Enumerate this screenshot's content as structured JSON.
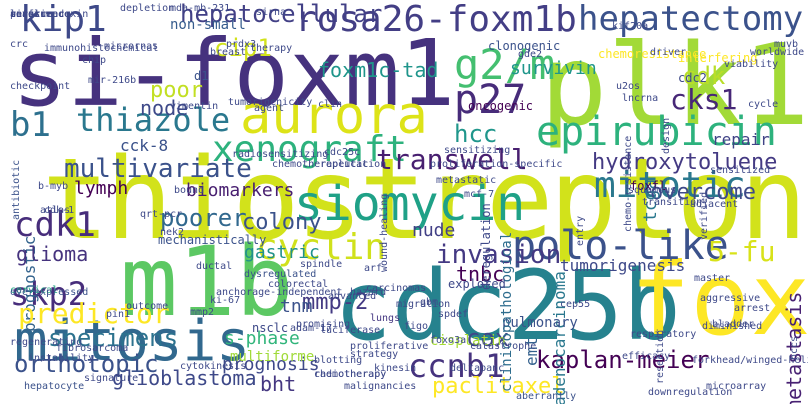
{
  "words": [
    {
      "t": "thiostrepton",
      "c": "#d2e21b",
      "big": true
    },
    {
      "t": "si-foxm1",
      "c": "#46327e"
    },
    {
      "t": "plk1",
      "c": "#a2da37"
    },
    {
      "t": "cdc25b",
      "c": "#26828e"
    },
    {
      "t": "m1b",
      "c": "#5cc863"
    },
    {
      "t": "fox",
      "c": "#fde725"
    },
    {
      "t": "mitosis",
      "c": "#31688e"
    },
    {
      "t": "rosa26-foxm1b",
      "c": "#433e85"
    },
    {
      "t": "hepatectomy",
      "c": "#3b528b"
    },
    {
      "t": "siomycin",
      "c": "#1fa187"
    },
    {
      "t": "aurora",
      "c": "#dde318"
    },
    {
      "t": "epirubicin",
      "c": "#2db27d"
    },
    {
      "t": "polo-like",
      "c": "#3b528b"
    },
    {
      "t": "xenograft",
      "c": "#2db27d"
    },
    {
      "t": "kip1",
      "c": "#3e4989"
    },
    {
      "t": "hepatocellular",
      "c": "#424086"
    },
    {
      "t": "g2/m",
      "c": "#44bf70"
    },
    {
      "t": "p27",
      "c": "#472c7a"
    },
    {
      "t": "thiazole",
      "c": "#2a788e"
    },
    {
      "t": "transwell",
      "c": "#481f70"
    },
    {
      "t": "cyclin",
      "c": "#d0e11c"
    },
    {
      "t": "mitotic",
      "c": "#2a788e"
    },
    {
      "t": "cdk1",
      "c": "#472d7b"
    },
    {
      "t": "skp2",
      "c": "#472d7b"
    },
    {
      "t": "ccnb1",
      "c": "#46337e"
    },
    {
      "t": "b1",
      "c": "#2d708e"
    },
    {
      "t": "hcc",
      "c": "#1f968b"
    },
    {
      "t": "hydroxytoluene",
      "c": "#443a83"
    },
    {
      "t": "cks1",
      "c": "#472777"
    },
    {
      "t": "cdk",
      "c": "#bade28"
    },
    {
      "t": "chemoresistance",
      "c": "#fde725"
    },
    {
      "t": "foxm1c-tad",
      "c": "#1f958b"
    },
    {
      "t": "survivin",
      "c": "#1f968b"
    },
    {
      "t": "cip1",
      "c": "#d2e21b"
    },
    {
      "t": "non-small",
      "c": "#365c8d"
    },
    {
      "t": "poor",
      "c": "#c2df23"
    },
    {
      "t": "node",
      "c": "#3e4989"
    },
    {
      "t": "cck-8",
      "c": "#3b528b"
    },
    {
      "t": "multivariate",
      "c": "#3b528b"
    },
    {
      "t": "lymph",
      "c": "#440154"
    },
    {
      "t": "biomarkers",
      "c": "#481f70"
    },
    {
      "t": "overcome",
      "c": "#3e4a89"
    },
    {
      "t": "prognostic",
      "c": "#33638d"
    },
    {
      "t": "poorer",
      "c": "#31688e"
    },
    {
      "t": "colony",
      "c": "#3b528b"
    },
    {
      "t": "glioma",
      "c": "#46337e"
    },
    {
      "t": "gastric",
      "c": "#21918c"
    },
    {
      "t": "nude",
      "c": "#424086"
    },
    {
      "t": "invasion",
      "c": "#443983"
    },
    {
      "t": "tnbc",
      "c": "#440154"
    },
    {
      "t": "5-fu",
      "c": "#d8e219"
    },
    {
      "t": "tumorigenesis",
      "c": "#3e4989"
    },
    {
      "t": "emt",
      "c": "#34618d"
    },
    {
      "t": "metastasis",
      "c": "#482173"
    },
    {
      "t": "predictor",
      "c": "#fde725"
    },
    {
      "t": "mmp-2",
      "c": "#443a83"
    },
    {
      "t": "specimens",
      "c": "#2c728e"
    },
    {
      "t": "tnm",
      "c": "#3b528b"
    },
    {
      "t": "s-phase",
      "c": "#31b57b"
    },
    {
      "t": "cox",
      "c": "#3f4788"
    },
    {
      "t": "kaplan-meier",
      "c": "#440154"
    },
    {
      "t": "paclitaxel",
      "c": "#fde725"
    },
    {
      "t": "bht",
      "c": "#453781"
    },
    {
      "t": "prognosis",
      "c": "#3e4989"
    },
    {
      "t": "orthotopic",
      "c": "#3b528b"
    },
    {
      "t": "glioblastoma",
      "c": "#3e4989"
    },
    {
      "t": "adenocarcinoma",
      "c": "#2a788e"
    },
    {
      "t": "repair",
      "c": "#414487"
    },
    {
      "t": "tcga",
      "c": "#2a788e"
    },
    {
      "t": "cisplatin",
      "c": "#a5db36"
    },
    {
      "t": "pulmonary",
      "c": "#3b528b"
    },
    {
      "t": "multiforme",
      "c": "#a0da39"
    },
    {
      "t": "nsclc",
      "c": "#3e4989"
    },
    {
      "t": "lungs",
      "c": "#453781"
    },
    {
      "t": "clinicopathological",
      "c": "#2e6d8e"
    },
    {
      "t": "deregulation",
      "c": "#3e4989"
    },
    {
      "t": "foxfl",
      "c": "#440154"
    },
    {
      "t": "entry",
      "c": "#3e4989"
    },
    {
      "t": "oncogenic",
      "c": "#440154"
    },
    {
      "t": "clonogenic",
      "c": "#3b528b"
    },
    {
      "t": "interfering",
      "c": "#fde725"
    },
    {
      "t": "cdc2",
      "c": "#3e4989"
    },
    {
      "t": "d1",
      "c": "#3b528b"
    },
    {
      "t": "cervical",
      "c": "#22a884"
    },
    {
      "t": "outcome",
      "c": "#3e4989"
    },
    {
      "t": "mechanistically",
      "c": "#3b528b"
    },
    {
      "t": "dysregulated",
      "c": "#3b528b"
    },
    {
      "t": "promising",
      "c": "#3e4989"
    },
    {
      "t": "arf",
      "c": "#3e4989"
    },
    {
      "t": "explored",
      "c": "#3e4989"
    },
    {
      "t": "aggressive",
      "c": "#3e4989"
    },
    {
      "t": "master",
      "c": "#3e4989"
    },
    {
      "t": "overexpressed",
      "c": "#3b528b"
    },
    {
      "t": "atlas",
      "c": "#3e4989"
    },
    {
      "t": "antibiotic",
      "c": "#3b528b"
    },
    {
      "t": "regenerating",
      "c": "#3e4989"
    },
    {
      "t": "hepatocyte",
      "c": "#3b528b"
    },
    {
      "t": "signature",
      "c": "#3e4989"
    },
    {
      "t": "cytokinesis",
      "c": "#3e4989"
    },
    {
      "t": "blotting",
      "c": "#3e4989"
    },
    {
      "t": "radiotherapy",
      "c": "#3e4989"
    },
    {
      "t": "malignancies",
      "c": "#3e4989"
    },
    {
      "t": "aberrantly",
      "c": "#3b528b"
    },
    {
      "t": "downregulation",
      "c": "#3e4989"
    },
    {
      "t": "microarray",
      "c": "#3e4989"
    },
    {
      "t": "forkhead/winged-helix",
      "c": "#3e4989"
    },
    {
      "t": "efficacy",
      "c": "#3e4989"
    },
    {
      "t": "catastrophe",
      "c": "#3e4989"
    },
    {
      "t": "kinesin",
      "c": "#3e4989"
    },
    {
      "t": "strategy",
      "c": "#3e4989"
    },
    {
      "t": "deltapanc",
      "c": "#3e4989"
    },
    {
      "t": "spdef",
      "c": "#3e4989"
    },
    {
      "t": "hazard",
      "c": "#3e4989"
    },
    {
      "t": "gbm",
      "c": "#3e4989"
    },
    {
      "t": "migration",
      "c": "#3e4989"
    },
    {
      "t": "carcinomas",
      "c": "#3e4989"
    },
    {
      "t": "advanced",
      "c": "#3e4989"
    },
    {
      "t": "colorectal",
      "c": "#3e4989"
    },
    {
      "t": "ductal",
      "c": "#3e4989"
    },
    {
      "t": "nek2",
      "c": "#3e4989"
    },
    {
      "t": "qrt-pcr",
      "c": "#3e4989"
    },
    {
      "t": "b-myb",
      "c": "#3e4989"
    },
    {
      "t": "bound",
      "c": "#3e4989"
    },
    {
      "t": "metastatic",
      "c": "#3e4989"
    },
    {
      "t": "mcf-7",
      "c": "#3e4989"
    },
    {
      "t": "squamous",
      "c": "#3e4989"
    },
    {
      "t": "transition",
      "c": "#3e4989"
    },
    {
      "t": "adjacent",
      "c": "#3e4989"
    },
    {
      "t": "verified",
      "c": "#3e4989"
    },
    {
      "t": "sensitized",
      "c": "#3e4989"
    },
    {
      "t": "chemotherapy",
      "c": "#3e4989"
    },
    {
      "t": "proliferative",
      "c": "#3e4989"
    },
    {
      "t": "foxo3a",
      "c": "#3e4989"
    },
    {
      "t": "cep55",
      "c": "#3e4989"
    },
    {
      "t": "respiratory",
      "c": "#3e4989"
    },
    {
      "t": "diminished",
      "c": "#3e4989"
    },
    {
      "t": "resection",
      "c": "#3e4989"
    },
    {
      "t": "bladder",
      "c": "#3e4989"
    },
    {
      "t": "hccs",
      "c": "#3e4989"
    },
    {
      "t": "arrest",
      "c": "#3e4989"
    },
    {
      "t": "proliferation-specific",
      "c": "#3e4989"
    },
    {
      "t": "sensitizing",
      "c": "#3e4989"
    },
    {
      "t": "radiosensitizing",
      "c": "#3e4989"
    },
    {
      "t": "chemotherapeutic",
      "c": "#3e4989"
    },
    {
      "t": "replication",
      "c": "#3e4989"
    },
    {
      "t": "cdc25c",
      "c": "#3e4989"
    },
    {
      "t": "vimentin",
      "c": "#3e4989"
    },
    {
      "t": "tumorigenicity",
      "c": "#3e4989"
    },
    {
      "t": "agent",
      "c": "#3e4989"
    },
    {
      "t": "clin",
      "c": "#3e4989"
    },
    {
      "t": "therapy",
      "c": "#3e4989"
    },
    {
      "t": "breast",
      "c": "#3e4989"
    },
    {
      "t": "prdx3",
      "c": "#3e4989"
    },
    {
      "t": "sirna",
      "c": "#3e4989"
    },
    {
      "t": "mda-mb-231",
      "c": "#3e4989"
    },
    {
      "t": "depletion",
      "c": "#3e4989"
    },
    {
      "t": "crc",
      "c": "#3e4989"
    },
    {
      "t": "immunohistochemical",
      "c": "#3e4989"
    },
    {
      "t": "micrornas",
      "c": "#3e4989"
    },
    {
      "t": "chip",
      "c": "#3e4989"
    },
    {
      "t": "mir-216b",
      "c": "#3e4989"
    },
    {
      "t": "checkpoint",
      "c": "#3e4989"
    },
    {
      "t": "gde2",
      "c": "#3e4989"
    },
    {
      "t": "kif20a",
      "c": "#3e4989"
    },
    {
      "t": "driver",
      "c": "#3e4989"
    },
    {
      "t": "muvb",
      "c": "#3e4989"
    },
    {
      "t": "worldwide",
      "c": "#3e4989"
    },
    {
      "t": "viability",
      "c": "#3e4989"
    },
    {
      "t": "u2os",
      "c": "#3e4989"
    },
    {
      "t": "lncrna",
      "c": "#3e4989"
    },
    {
      "t": "design",
      "c": "#3e4989"
    },
    {
      "t": "cycle",
      "c": "#3e4989"
    },
    {
      "t": "chemo-resistance",
      "c": "#3e4989"
    },
    {
      "t": "wound-healing",
      "c": "#3e4989"
    },
    {
      "t": "spindle",
      "c": "#3e4989"
    },
    {
      "t": "adam-17",
      "c": "#3e4989"
    },
    {
      "t": "luciferase",
      "c": "#3e4989"
    },
    {
      "t": "anchorage-independent",
      "c": "#3e4989"
    },
    {
      "t": "ki-67",
      "c": "#3e4989"
    },
    {
      "t": "mmp2",
      "c": "#3e4989"
    },
    {
      "t": "pin1",
      "c": "#3e4989"
    },
    {
      "t": "figo",
      "c": "#3e4989"
    },
    {
      "t": "cdk-1",
      "c": "#3e4989"
    },
    {
      "t": "fibrosarcoma",
      "c": "#3e4989"
    },
    {
      "t": "instability",
      "c": "#3e4989"
    },
    {
      "t": "antitumor",
      "c": "#3e4989"
    },
    {
      "t": "recurrence",
      "c": "#3e4989"
    },
    {
      "t": "senescence",
      "c": "#3e4989"
    },
    {
      "t": "rnas",
      "c": "#3e4989"
    },
    {
      "t": "lirfl",
      "c": "#3e4989"
    },
    {
      "t": "peroxiredoxin",
      "c": "#3e4989"
    }
  ]
}
